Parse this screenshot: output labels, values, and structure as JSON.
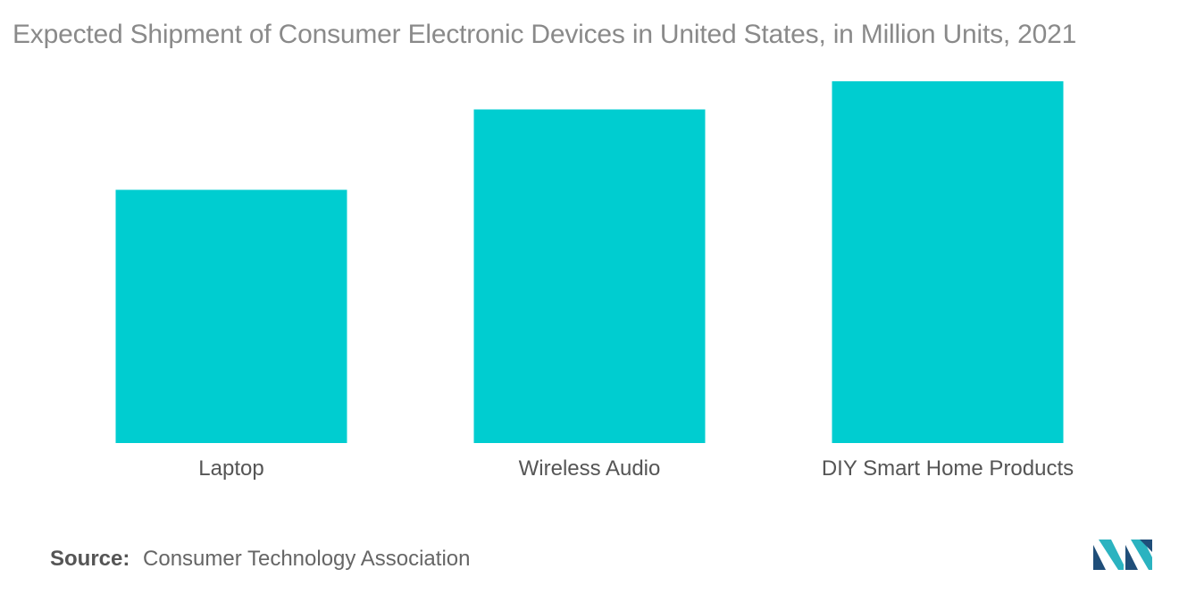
{
  "title": "Expected Shipment of Consumer Electronic Devices in United States, in Million Units, 2021",
  "source": {
    "label": "Source:",
    "text": "Consumer Technology Association"
  },
  "logo": {
    "icon": "mordor-intelligence-logo-icon",
    "colors": [
      "#1f4e79",
      "#2bb3c0"
    ]
  },
  "chart_data": {
    "type": "bar",
    "title": "Expected Shipment of Consumer Electronic Devices in United States, in Million Units, 2021",
    "categories": [
      "Laptop",
      "Wireless Audio",
      "DIY Smart Home Products"
    ],
    "values": [
      31.5,
      41.5,
      45
    ],
    "ylim": [
      0,
      50
    ],
    "xlabel": "",
    "ylabel": "",
    "grid": false,
    "legend": "none",
    "bar_color": "#00cdd0"
  }
}
